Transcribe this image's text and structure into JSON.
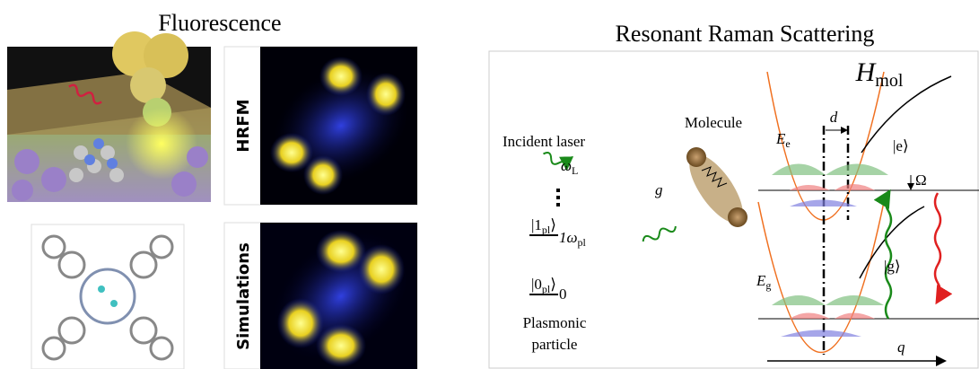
{
  "fluorescence": {
    "title": "Fluorescence",
    "hrfm_label": "HRFM",
    "simulations_label": "Simulations"
  },
  "raman": {
    "title": "Resonant Raman Scattering",
    "hamiltonian": {
      "base": "H",
      "sub": "mol"
    },
    "molecule": "Molecule",
    "incident_laser": "Incident laser",
    "laser_freq": {
      "base": "ω",
      "sub": "L"
    },
    "coupling": "g",
    "state_1": {
      "pre": "|1",
      "sub": "pl",
      "post": "⟩"
    },
    "energy_1": {
      "base": "1ω",
      "sub": "pl"
    },
    "state_0": {
      "pre": "|0",
      "sub": "pl",
      "post": "⟩"
    },
    "energy_0": "0",
    "plasmonic": [
      "Plasmonic",
      "particle"
    ],
    "displacement": "d",
    "excited_state": "|e⟩",
    "excited_energy": {
      "base": "E",
      "sub": "e"
    },
    "vibration": "Ω",
    "ground_state": "|g⟩",
    "ground_energy": {
      "base": "E",
      "sub": "g"
    },
    "coordinate": "q"
  }
}
